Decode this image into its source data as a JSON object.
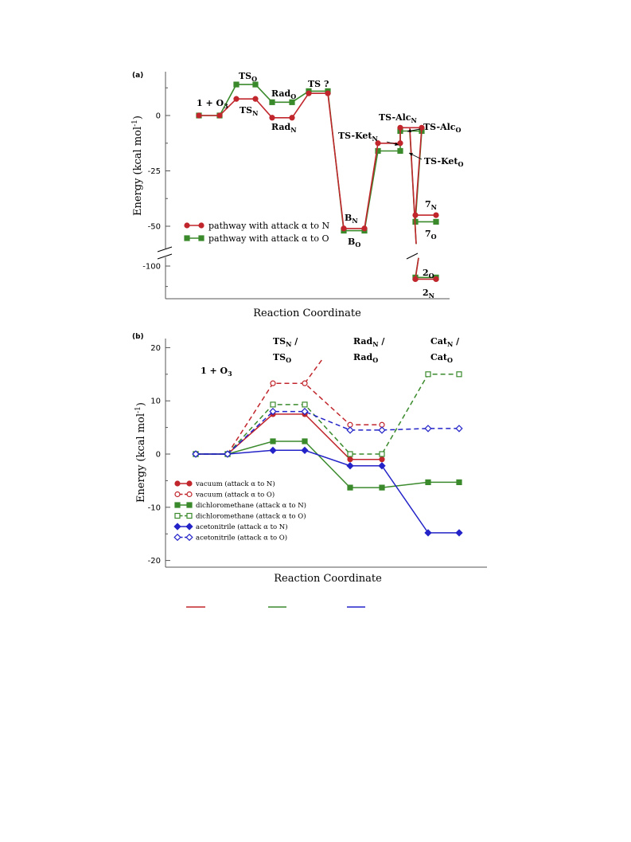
{
  "chart_data": [
    {
      "panel": "(a)",
      "type": "line",
      "ylabel": "Energy (kcal mol-1)",
      "xlabel": "Reaction Coordinate",
      "yticks": [
        0,
        -25,
        -50,
        -100
      ],
      "ylim": [
        -115,
        25
      ],
      "axis_break": {
        "from": -58,
        "to": -95
      },
      "series": [
        {
          "name": "pathway with attack α to N",
          "color": "#c0262c",
          "marker": "circle",
          "levels": [
            [
              0,
              0
            ],
            [
              1,
              7.5
            ],
            [
              2,
              -1
            ],
            [
              3,
              10
            ],
            [
              4,
              -51
            ],
            [
              5,
              -12.5
            ],
            [
              6,
              -5.5
            ],
            [
              7,
              -45
            ],
            [
              7,
              -108
            ]
          ]
        },
        {
          "name": "pathway with attack α to O",
          "color": "#3a8a2c",
          "marker": "square",
          "levels": [
            [
              0,
              0
            ],
            [
              1,
              14
            ],
            [
              2,
              6
            ],
            [
              3,
              11
            ],
            [
              4,
              -52
            ],
            [
              5,
              -16
            ],
            [
              6,
              -7
            ],
            [
              7,
              -48
            ],
            [
              7,
              -107
            ]
          ]
        }
      ],
      "labels": [
        {
          "base": "1 + O",
          "sub": "3",
          "tail": ""
        },
        {
          "base": "TS",
          "sub": "O",
          "tail": ""
        },
        {
          "base": "TS",
          "sub": "N",
          "tail": ""
        },
        {
          "base": "Rad",
          "sub": "O",
          "tail": ""
        },
        {
          "base": "Rad",
          "sub": "N",
          "tail": ""
        },
        {
          "base": "TS ?",
          "sub": "",
          "tail": ""
        },
        {
          "base": "B",
          "sub": "N",
          "tail": ""
        },
        {
          "base": "B",
          "sub": "O",
          "tail": ""
        },
        {
          "base": "TS-Alc",
          "sub": "N",
          "tail": ""
        },
        {
          "base": "TS-Ket",
          "sub": "N",
          "tail": ""
        },
        {
          "base": "TS-Alc",
          "sub": "O",
          "tail": ""
        },
        {
          "base": "TS-Ket",
          "sub": "O",
          "tail": ""
        },
        {
          "base": "7",
          "sub": "N",
          "tail": ""
        },
        {
          "base": "7",
          "sub": "O",
          "tail": ""
        },
        {
          "base": "2",
          "sub": "O",
          "tail": ""
        },
        {
          "base": "2",
          "sub": "N",
          "tail": ""
        }
      ]
    },
    {
      "panel": "(b)",
      "type": "line",
      "ylabel": "Energy (kcal mol-1)",
      "xlabel": "Reaction Coordinate",
      "yticks": [
        20,
        10,
        0,
        -10,
        -20
      ],
      "ylim": [
        -21,
        22
      ],
      "series": [
        {
          "name": "vacuum (attack α to N)",
          "color": "#c0262c",
          "marker": "circle",
          "filled": true,
          "dashed": false,
          "levels": [
            [
              0,
              0
            ],
            [
              1,
              7.5
            ],
            [
              2,
              -1
            ]
          ]
        },
        {
          "name": "vacuum (attack α to O)",
          "color": "#c0262c",
          "marker": "circle",
          "filled": false,
          "dashed": true,
          "levels": [
            [
              0,
              0
            ],
            [
              1,
              13.3
            ],
            [
              2,
              5.5
            ]
          ]
        },
        {
          "name": "dichloromethane (attack α to N)",
          "color": "#3a8a2c",
          "marker": "square",
          "filled": true,
          "dashed": false,
          "levels": [
            [
              0,
              0
            ],
            [
              1,
              2.4
            ],
            [
              2,
              -6.3
            ],
            [
              3,
              -5.3
            ]
          ]
        },
        {
          "name": "dichloromethane (attack α to O)",
          "color": "#3a8a2c",
          "marker": "square",
          "filled": false,
          "dashed": true,
          "levels": [
            [
              0,
              0
            ],
            [
              1,
              9.3
            ],
            [
              2,
              0
            ],
            [
              3,
              15
            ]
          ]
        },
        {
          "name": "acetonitrile (attack α to N)",
          "color": "#2323c8",
          "marker": "diamond",
          "filled": true,
          "dashed": false,
          "levels": [
            [
              0,
              0
            ],
            [
              1,
              0.7
            ],
            [
              2,
              -2.2
            ],
            [
              3,
              -14.8
            ]
          ]
        },
        {
          "name": "acetonitrile (attack α to O)",
          "color": "#2323c8",
          "marker": "diamond",
          "filled": false,
          "dashed": true,
          "levels": [
            [
              0,
              0
            ],
            [
              1,
              8
            ],
            [
              2,
              4.5
            ],
            [
              3,
              4.8
            ]
          ]
        }
      ],
      "labels": [
        {
          "base": "1 + O",
          "sub": "3",
          "tail": ""
        },
        {
          "base": "TS",
          "sub": "N",
          "tail": " /"
        },
        {
          "base": "TS",
          "sub": "O",
          "tail": ""
        },
        {
          "base": "Rad",
          "sub": "N",
          "tail": " /"
        },
        {
          "base": "Rad",
          "sub": "O",
          "tail": ""
        },
        {
          "base": "Cat",
          "sub": "N",
          "tail": " /"
        },
        {
          "base": "Cat",
          "sub": "O",
          "tail": ""
        }
      ]
    }
  ]
}
